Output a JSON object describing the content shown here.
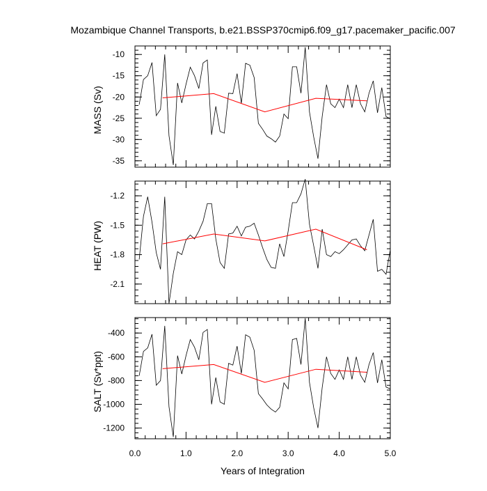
{
  "title": "Mozambique Channel Transports, b.e21.BSSP370cmip6.f09_g17.pacemaker_pacific.007",
  "colors": {
    "series_monthly": "#000000",
    "series_annual": "#ff0000",
    "axes": "#000000",
    "background": "#ffffff"
  },
  "chart_data": [
    {
      "type": "line",
      "title": "",
      "ylabel": "MASS (Sv)",
      "xlabel": "",
      "xlim": [
        0,
        5
      ],
      "ylim": [
        -36.5,
        -8
      ],
      "x_ticks": [
        0,
        1,
        2,
        3,
        4,
        5
      ],
      "x_tick_labels": [],
      "y_ticks": [
        -35,
        -30,
        -25,
        -20,
        -15,
        -10
      ],
      "y_tick_labels": [
        "-35",
        "-30",
        "-25",
        "-20",
        "-15",
        "-10"
      ],
      "grid": false,
      "series": [
        {
          "x": [
            0.0833,
            0.1667,
            0.25,
            0.3333,
            0.4167,
            0.5,
            0.5833,
            0.6667,
            0.75,
            0.8333,
            0.9167,
            1.0,
            1.0833,
            1.1667,
            1.25,
            1.3333,
            1.4167,
            1.5,
            1.5833,
            1.6667,
            1.75,
            1.8333,
            1.9167,
            2.0,
            2.0833,
            2.1667,
            2.25,
            2.3333,
            2.4167,
            2.5,
            2.5833,
            2.6667,
            2.75,
            2.8333,
            2.9167,
            3.0,
            3.0833,
            3.1667,
            3.25,
            3.3333,
            3.4167,
            3.5,
            3.5833,
            3.6667,
            3.75,
            3.8333,
            3.9167,
            4.0,
            4.0833,
            4.1667,
            4.25,
            4.3333,
            4.4167,
            4.5,
            4.5833,
            4.6667,
            4.75,
            4.8333,
            4.9167,
            5.0
          ],
          "values": [
            -21.8,
            -15.9,
            -15.0,
            -11.9,
            -24.4,
            -22.9,
            -10.0,
            -29.1,
            -36.0,
            -16.7,
            -21.4,
            -17.0,
            -13.0,
            -15.0,
            -18.0,
            -12.0,
            -11.3,
            -28.9,
            -22.2,
            -28.1,
            -28.5,
            -19.1,
            -19.2,
            -14.5,
            -21.5,
            -12.1,
            -12.5,
            -15.4,
            -26.2,
            -27.6,
            -29.2,
            -29.8,
            -30.6,
            -29.2,
            -24.0,
            -25.1,
            -12.9,
            -12.9,
            -19.1,
            -8.3,
            -23.5,
            -29.4,
            -34.5,
            -24.6,
            -17.1,
            -21.6,
            -22.5,
            -20.5,
            -22.5,
            -17.1,
            -22.5,
            -17.1,
            -21.6,
            -23.5,
            -19.1,
            -16.2,
            -23.7,
            -17.8,
            -24.6,
            -25.1
          ]
        },
        {
          "x": [
            0.5417,
            1.5417,
            2.5417,
            3.5417,
            4.5417
          ],
          "values": [
            -20.2,
            -19.2,
            -23.5,
            -20.3,
            -20.9
          ]
        }
      ]
    },
    {
      "type": "line",
      "title": "",
      "ylabel": "HEAT (PW)",
      "xlabel": "",
      "xlim": [
        0,
        5
      ],
      "ylim": [
        -2.3,
        -1.05
      ],
      "x_ticks": [
        0,
        1,
        2,
        3,
        4,
        5
      ],
      "x_tick_labels": [],
      "y_ticks": [
        -2.1,
        -1.8,
        -1.5,
        -1.2
      ],
      "y_tick_labels": [
        "-2.1",
        "-1.8",
        "-1.5",
        "-1.2"
      ],
      "grid": false,
      "series": [
        {
          "x": [
            0.0833,
            0.1667,
            0.25,
            0.3333,
            0.4167,
            0.5,
            0.5833,
            0.6667,
            0.75,
            0.8333,
            0.9167,
            1.0,
            1.0833,
            1.1667,
            1.25,
            1.3333,
            1.4167,
            1.5,
            1.5833,
            1.6667,
            1.75,
            1.8333,
            1.9167,
            2.0,
            2.0833,
            2.1667,
            2.25,
            2.3333,
            2.4167,
            2.5,
            2.5833,
            2.6667,
            2.75,
            2.8333,
            2.9167,
            3.0,
            3.0833,
            3.1667,
            3.25,
            3.3333,
            3.4167,
            3.5,
            3.5833,
            3.6667,
            3.75,
            3.8333,
            3.9167,
            4.0,
            4.0833,
            4.1667,
            4.25,
            4.3333,
            4.4167,
            4.5,
            4.5833,
            4.6667,
            4.75,
            4.8333,
            4.9167,
            5.0
          ],
          "values": [
            -1.85,
            -1.41,
            -1.21,
            -1.47,
            -1.78,
            -1.95,
            -1.21,
            -2.3,
            -1.99,
            -1.77,
            -1.8,
            -1.65,
            -1.6,
            -1.64,
            -1.56,
            -1.46,
            -1.28,
            -1.28,
            -1.64,
            -1.88,
            -1.94,
            -1.59,
            -1.58,
            -1.51,
            -1.61,
            -1.52,
            -1.51,
            -1.48,
            -1.6,
            -1.73,
            -1.85,
            -1.93,
            -1.94,
            -1.69,
            -1.82,
            -1.56,
            -1.27,
            -1.27,
            -1.18,
            -1.03,
            -1.49,
            -1.71,
            -1.94,
            -1.54,
            -1.8,
            -1.82,
            -1.77,
            -1.79,
            -1.75,
            -1.7,
            -1.65,
            -1.64,
            -1.71,
            -1.76,
            -1.6,
            -1.44,
            -1.97,
            -1.95,
            -2.0,
            -1.75
          ]
        },
        {
          "x": [
            0.5417,
            1.5417,
            2.5417,
            3.5417,
            4.5417
          ],
          "values": [
            -1.69,
            -1.59,
            -1.66,
            -1.54,
            -1.75
          ]
        }
      ]
    },
    {
      "type": "line",
      "title": "",
      "ylabel": "SALT (Sv*ppt)",
      "xlabel": "Years of Integration",
      "xlim": [
        0,
        5
      ],
      "ylim": [
        -1290,
        -270
      ],
      "x_ticks": [
        0,
        1,
        2,
        3,
        4,
        5
      ],
      "x_tick_labels": [
        "0.0",
        "1.0",
        "2.0",
        "3.0",
        "4.0",
        "5.0"
      ],
      "y_ticks": [
        -1200,
        -1000,
        -800,
        -600,
        -400
      ],
      "y_tick_labels": [
        "-1200",
        "-1000",
        "-800",
        "-600",
        "-400"
      ],
      "grid": false,
      "series": [
        {
          "x": [
            0.0833,
            0.1667,
            0.25,
            0.3333,
            0.4167,
            0.5,
            0.5833,
            0.6667,
            0.75,
            0.8333,
            0.9167,
            1.0,
            1.0833,
            1.1667,
            1.25,
            1.3333,
            1.4167,
            1.5,
            1.5833,
            1.6667,
            1.75,
            1.8333,
            1.9167,
            2.0,
            2.0833,
            2.1667,
            2.25,
            2.3333,
            2.4167,
            2.5,
            2.5833,
            2.6667,
            2.75,
            2.8333,
            2.9167,
            3.0,
            3.0833,
            3.1667,
            3.25,
            3.3333,
            3.4167,
            3.5,
            3.5833,
            3.6667,
            3.75,
            3.8333,
            3.9167,
            4.0,
            4.0833,
            4.1667,
            4.25,
            4.3333,
            4.4167,
            4.5,
            4.5833,
            4.6667,
            4.75,
            4.8333,
            4.9167,
            5.0
          ],
          "values": [
            -760,
            -555,
            -525,
            -410,
            -840,
            -800,
            -340,
            -1020,
            -1275,
            -590,
            -745,
            -590,
            -455,
            -520,
            -625,
            -395,
            -370,
            -1000,
            -775,
            -980,
            -1000,
            -655,
            -670,
            -510,
            -740,
            -415,
            -435,
            -545,
            -910,
            -955,
            -1005,
            -1040,
            -1065,
            -1025,
            -820,
            -870,
            -455,
            -445,
            -665,
            -275,
            -815,
            -1030,
            -1200,
            -860,
            -600,
            -740,
            -790,
            -710,
            -790,
            -600,
            -790,
            -600,
            -755,
            -815,
            -665,
            -565,
            -820,
            -625,
            -855,
            -870
          ]
        },
        {
          "x": [
            0.5417,
            1.5417,
            2.5417,
            3.5417,
            4.5417
          ],
          "values": [
            -700,
            -665,
            -815,
            -705,
            -730
          ]
        }
      ]
    }
  ]
}
